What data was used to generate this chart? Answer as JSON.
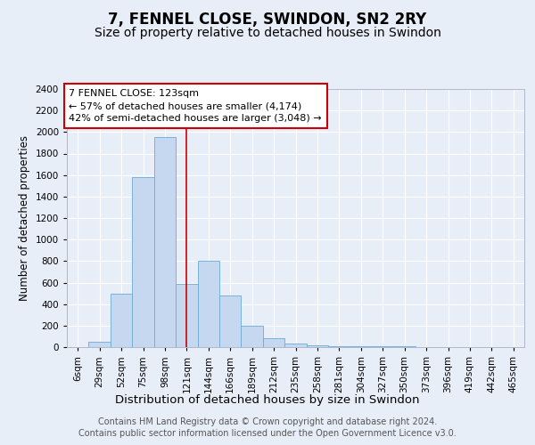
{
  "title": "7, FENNEL CLOSE, SWINDON, SN2 2RY",
  "subtitle": "Size of property relative to detached houses in Swindon",
  "xlabel": "Distribution of detached houses by size in Swindon",
  "ylabel": "Number of detached properties",
  "categories": [
    "6sqm",
    "29sqm",
    "52sqm",
    "75sqm",
    "98sqm",
    "121sqm",
    "144sqm",
    "166sqm",
    "189sqm",
    "212sqm",
    "235sqm",
    "258sqm",
    "281sqm",
    "304sqm",
    "327sqm",
    "350sqm",
    "373sqm",
    "396sqm",
    "419sqm",
    "442sqm",
    "465sqm"
  ],
  "values": [
    0,
    50,
    500,
    1580,
    1950,
    590,
    800,
    480,
    195,
    85,
    30,
    20,
    10,
    5,
    5,
    5,
    0,
    0,
    0,
    0,
    0
  ],
  "bar_color": "#c5d8ef",
  "bar_edge_color": "#6aaad4",
  "annotation_line1": "7 FENNEL CLOSE: 123sqm",
  "annotation_line2": "← 57% of detached houses are smaller (4,174)",
  "annotation_line3": "42% of semi-detached houses are larger (3,048) →",
  "annotation_box_facecolor": "#ffffff",
  "annotation_box_edgecolor": "#cc0000",
  "vline_color": "#cc0000",
  "vline_x": 5.0,
  "background_color": "#e8eef8",
  "plot_bg_color": "#e8eef8",
  "grid_color": "#ffffff",
  "ylim": [
    0,
    2400
  ],
  "yticks": [
    0,
    200,
    400,
    600,
    800,
    1000,
    1200,
    1400,
    1600,
    1800,
    2000,
    2200,
    2400
  ],
  "footer_line1": "Contains HM Land Registry data © Crown copyright and database right 2024.",
  "footer_line2": "Contains public sector information licensed under the Open Government Licence v3.0.",
  "title_fontsize": 12,
  "subtitle_fontsize": 10,
  "xlabel_fontsize": 9.5,
  "ylabel_fontsize": 8.5,
  "tick_fontsize": 7.5,
  "annotation_fontsize": 8,
  "footer_fontsize": 7
}
